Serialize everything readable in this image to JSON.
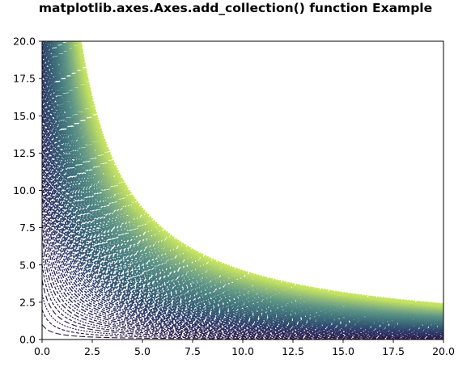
{
  "chart_data": {
    "type": "line",
    "title": "matplotlib.axes.Axes.add_collection() function Example",
    "xlabel": "",
    "ylabel": "",
    "xlim": [
      0,
      20
    ],
    "ylim": [
      0,
      20
    ],
    "x_ticks": [
      "0.0",
      "2.5",
      "5.0",
      "7.5",
      "10.0",
      "12.5",
      "15.0",
      "17.5",
      "20.0"
    ],
    "y_ticks": [
      "0.0",
      "2.5",
      "5.0",
      "7.5",
      "10.0",
      "12.5",
      "15.0",
      "17.5",
      "20.0"
    ],
    "grid": false,
    "legend": "none",
    "curve_family": {
      "formula": "y = k / (x + 0.5)",
      "k_values": [
        0.5,
        1,
        1.5,
        2,
        2.5,
        3,
        3.5,
        4,
        4.5,
        5,
        5.5,
        6,
        6.5,
        7,
        7.5,
        8,
        8.5,
        9,
        9.5,
        10,
        10.5,
        11,
        11.5,
        12,
        12.5,
        13,
        13.5,
        14,
        14.5,
        15,
        15.5,
        16,
        16.5,
        17,
        17.5,
        18,
        18.5,
        19,
        19.5,
        20,
        20.5,
        21,
        21.5,
        22,
        22.5,
        23,
        23.5,
        24,
        24.5,
        25,
        25.5,
        26,
        26.5,
        27,
        27.5,
        28,
        28.5,
        29,
        29.5,
        30,
        30.5,
        31,
        31.5,
        32,
        32.5,
        33,
        33.5,
        34,
        34.5,
        35,
        35.5,
        36,
        36.5,
        37,
        37.5,
        38,
        38.5,
        39,
        39.5,
        40,
        40.5,
        41,
        41.5,
        42,
        42.5,
        43,
        43.5,
        44,
        44.5,
        45,
        45.5,
        46,
        46.5,
        47,
        47.5,
        48
      ]
    },
    "colormap": [
      "#2b1a45",
      "#2d2a5c",
      "#2e3f6b",
      "#335872",
      "#3e6e79",
      "#4b8180",
      "#5f9585",
      "#7fae7f",
      "#a3c96d",
      "#c6e460"
    ],
    "line_style": "dashed",
    "frame_color": "#000000"
  }
}
